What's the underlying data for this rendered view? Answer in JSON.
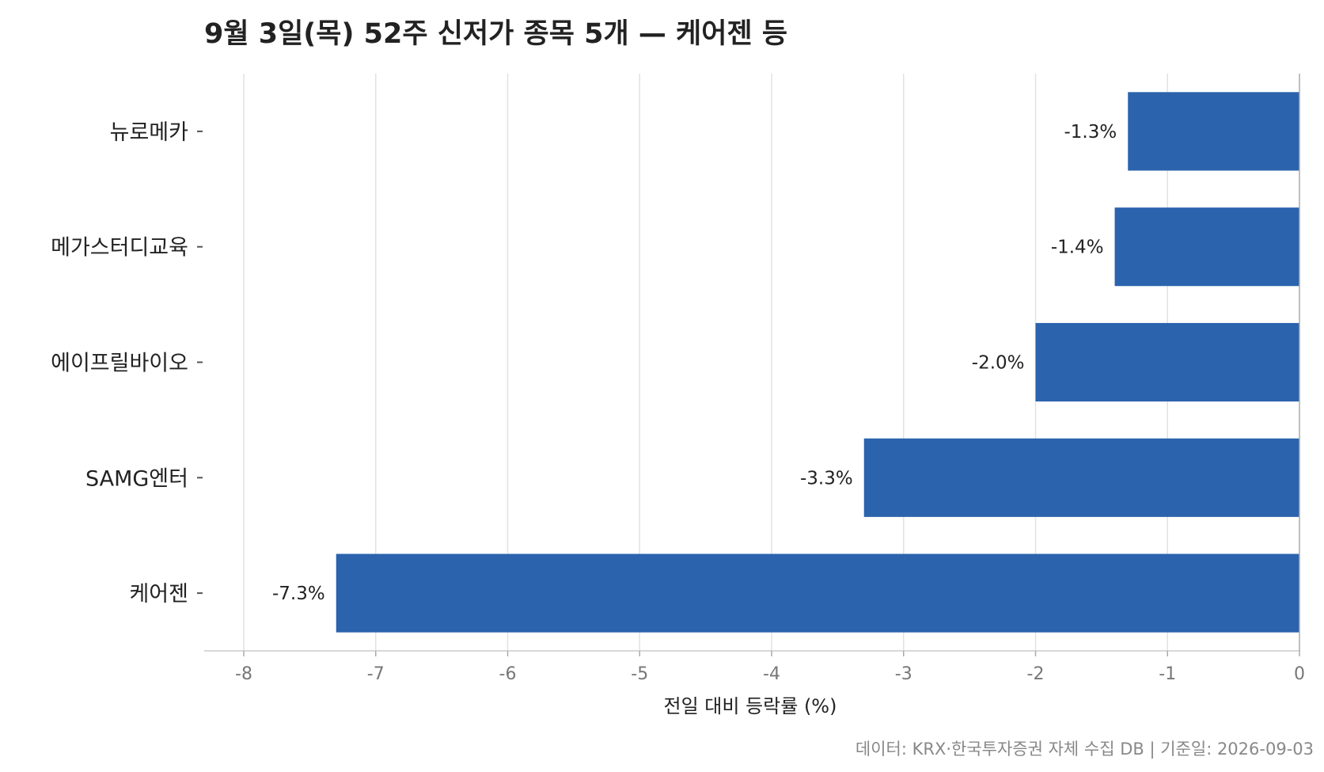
{
  "chart_data": {
    "type": "bar",
    "orientation": "horizontal",
    "title": "9월 3일(목) 52주 신저가 종목 5개 — 케어젠 등",
    "categories": [
      "뉴로메카",
      "메가스터디교육",
      "에이프릴바이오",
      "SAMG엔터",
      "케어젠"
    ],
    "values": [
      -1.3,
      -1.4,
      -2.0,
      -3.3,
      -7.3
    ],
    "data_labels": [
      "-1.3%",
      "-1.4%",
      "-2.0%",
      "-3.3%",
      "-7.3%"
    ],
    "xlabel": "전일 대비 등락률 (%)",
    "ylabel": "",
    "xlim": [
      -8.3,
      0
    ],
    "xticks": [
      -8,
      -7,
      -6,
      -5,
      -4,
      -3,
      -2,
      -1,
      0
    ],
    "xtick_labels": [
      "-8",
      "-7",
      "-6",
      "-5",
      "-4",
      "-3",
      "-2",
      "-1",
      "0"
    ],
    "grid": "vertical",
    "bar_color": "#2b63ad",
    "source": "데이터: KRX·한국투자증권 자체 수집 DB  |  기준일: 2026-09-03"
  }
}
